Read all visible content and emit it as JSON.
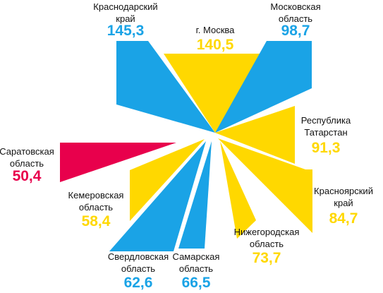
{
  "chart_data": {
    "type": "radial-wedge",
    "colors": {
      "blue": "#1aa3e6",
      "yellow": "#ffd800",
      "red": "#e8004c"
    },
    "categories": [
      "Краснодарский край",
      "г. Москва",
      "Московская область",
      "Республика Татарстан",
      "Красноярский край",
      "Нижегородская область",
      "Самарская область",
      "Свердловская область",
      "Кемеровская область",
      "Саратовская область"
    ],
    "values": [
      145.3,
      140.5,
      98.7,
      91.3,
      84.7,
      73.7,
      66.5,
      62.6,
      58.4,
      50.4
    ],
    "items": [
      {
        "label_lines": [
          "Краснодарский",
          "край"
        ],
        "value_text": "145,3",
        "color": "blue"
      },
      {
        "label_lines": [
          "г. Москва"
        ],
        "value_text": "140,5",
        "color": "yellow"
      },
      {
        "label_lines": [
          "Московская",
          "область"
        ],
        "value_text": "98,7",
        "color": "blue"
      },
      {
        "label_lines": [
          "Республика",
          "Татарстан"
        ],
        "value_text": "91,3",
        "color": "yellow"
      },
      {
        "label_lines": [
          "Красноярский",
          "край"
        ],
        "value_text": "84,7",
        "color": "yellow"
      },
      {
        "label_lines": [
          "Нижегородская",
          "область"
        ],
        "value_text": "73,7",
        "color": "yellow"
      },
      {
        "label_lines": [
          "Самарская",
          "область"
        ],
        "value_text": "66,5",
        "color": "blue"
      },
      {
        "label_lines": [
          "Свердловская",
          "область"
        ],
        "value_text": "62,6",
        "color": "blue"
      },
      {
        "label_lines": [
          "Кемеровская",
          "область"
        ],
        "value_text": "58,4",
        "color": "yellow"
      },
      {
        "label_lines": [
          "Саратовская",
          "область"
        ],
        "value_text": "50,4",
        "color": "red"
      }
    ]
  }
}
